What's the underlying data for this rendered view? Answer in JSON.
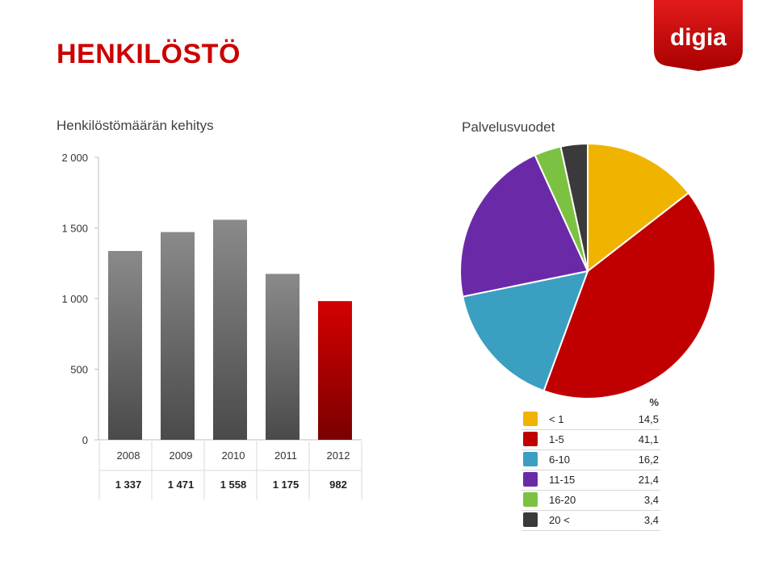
{
  "page": {
    "title": "HENKILÖSTÖ",
    "logo_text": "digia"
  },
  "colors": {
    "brand_red": "#cc0000",
    "bar_gray": "#7a7a7a",
    "bar_highlight": "#c40000"
  },
  "chart_data": [
    {
      "type": "bar",
      "title": "Henkilöstömäärän kehitys",
      "categories": [
        "2008",
        "2009",
        "2010",
        "2011",
        "2012"
      ],
      "values": [
        1337,
        1471,
        1558,
        1175,
        982
      ],
      "value_labels": [
        "1 337",
        "1 471",
        "1 558",
        "1 175",
        "982"
      ],
      "ylim": [
        0,
        2000
      ],
      "yticks": [
        0,
        500,
        1000,
        1500,
        2000
      ],
      "ytick_labels": [
        "0",
        "500",
        "1 000",
        "1 500",
        "2 000"
      ],
      "highlight_index": 4,
      "xlabel": "",
      "ylabel": ""
    },
    {
      "type": "pie",
      "title": "Palvelusvuodet",
      "unit_header": "%",
      "labels": [
        "< 1",
        "1-5",
        "6-10",
        "11-15",
        "16-20",
        "20 <"
      ],
      "values": [
        14.5,
        41.1,
        16.2,
        21.4,
        3.4,
        3.4
      ],
      "value_labels": [
        "14,5",
        "41,1",
        "16,2",
        "21,4",
        "3,4",
        "3,4"
      ],
      "colors": [
        "#f0b400",
        "#c00000",
        "#3a9fc0",
        "#6a2aa8",
        "#7cc242",
        "#3a3a3a"
      ]
    }
  ]
}
